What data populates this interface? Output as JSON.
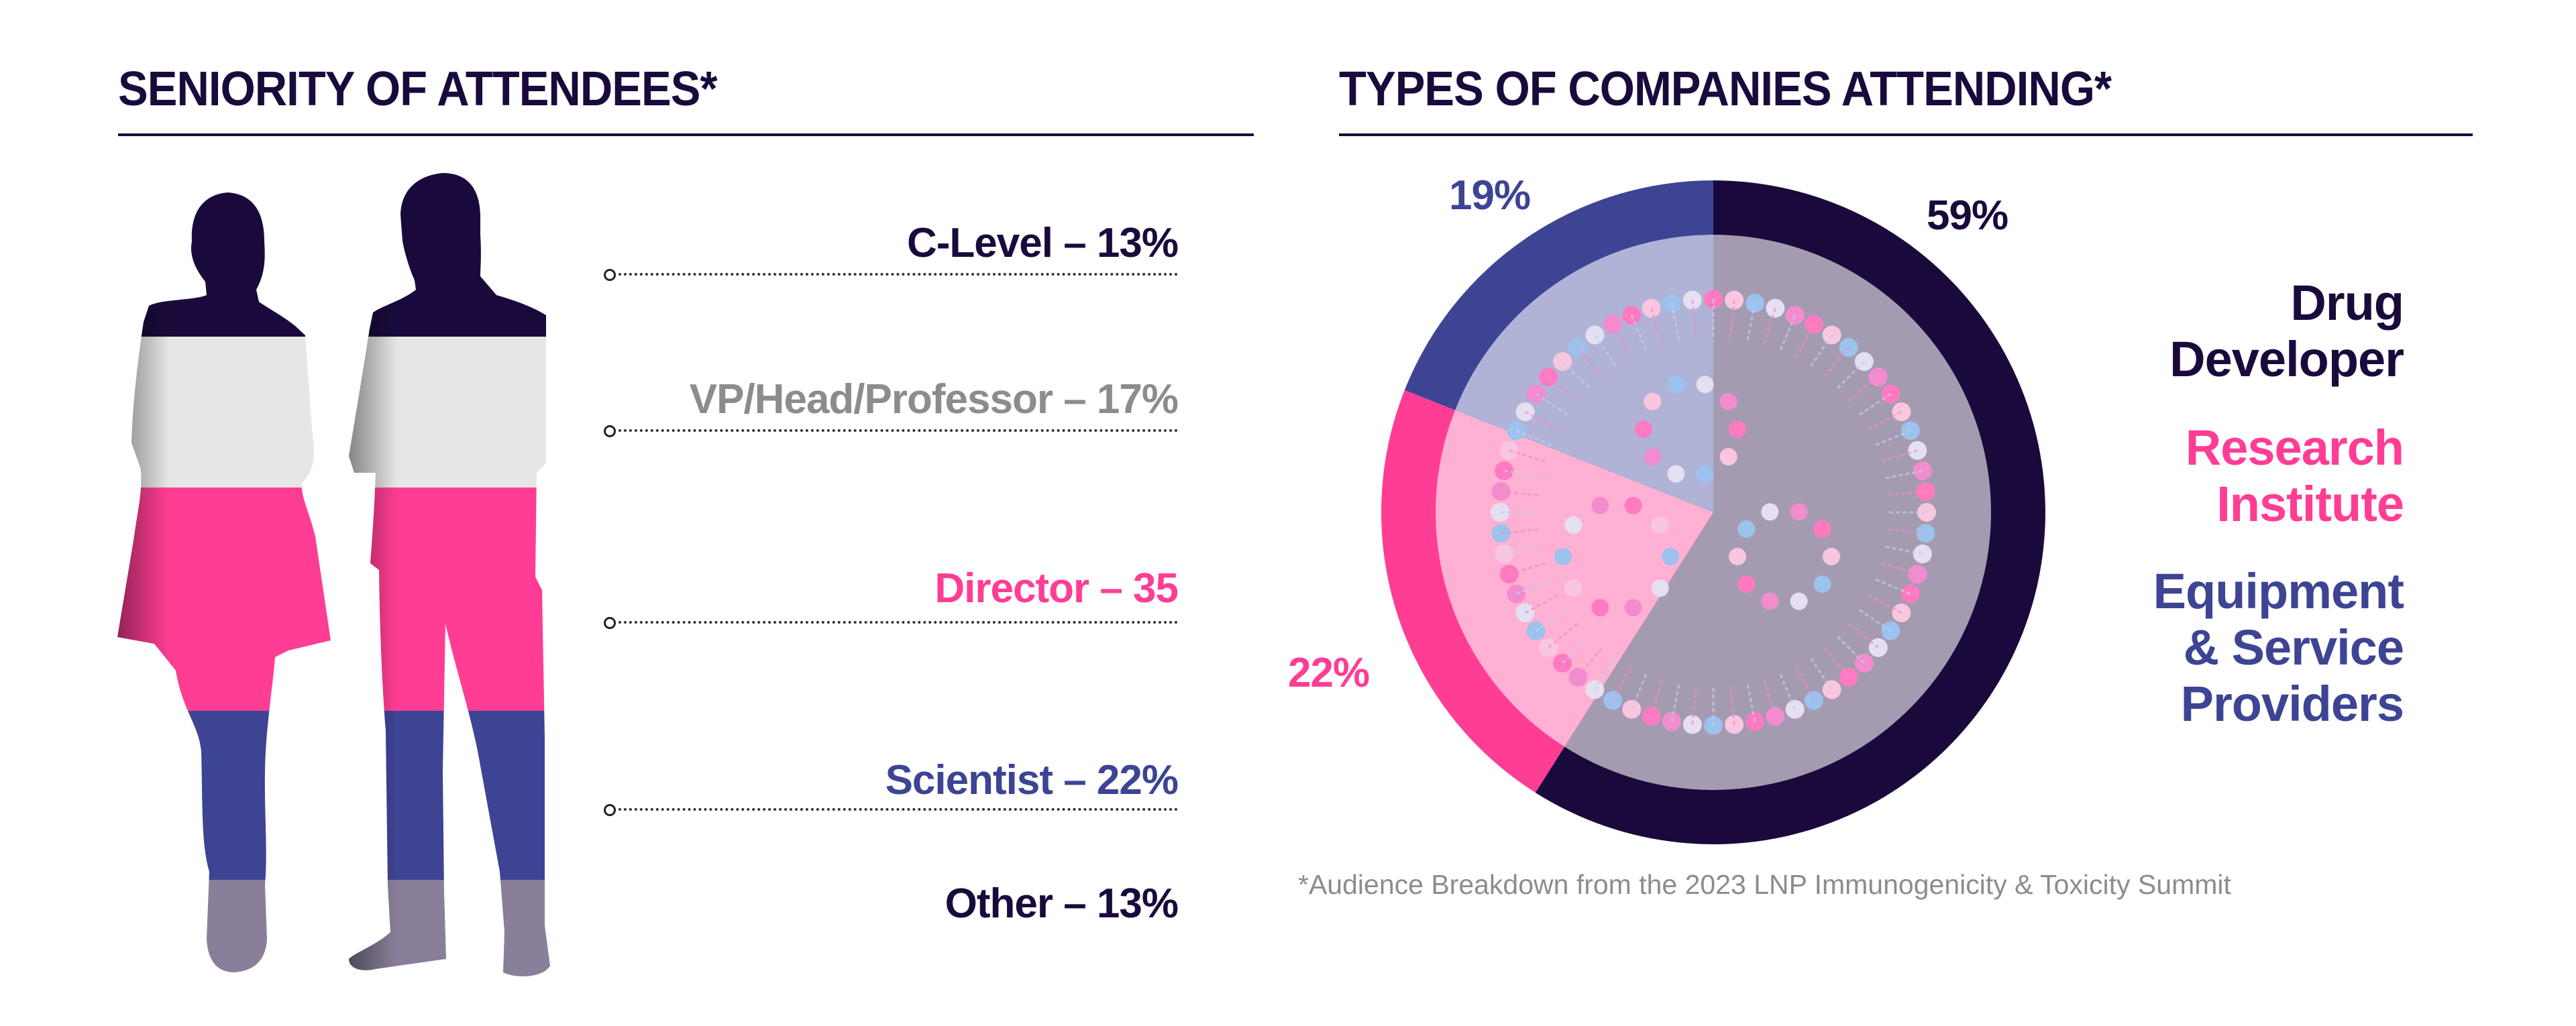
{
  "left": {
    "title": "SENIORITY OF ATTENDEES*",
    "items": [
      {
        "label": "C-Level – 13%",
        "color": "#1a0a3c"
      },
      {
        "label": "VP/Head/Professor – 17%",
        "color": "#8c8c8c"
      },
      {
        "label": "Director – 35",
        "color": "#ff3d94"
      },
      {
        "label": "Scientist – 22%",
        "color": "#3d4494"
      },
      {
        "label": "Other – 13%",
        "color": "#1a0a3c"
      }
    ]
  },
  "right": {
    "title": "TYPES OF COMPANIES ATTENDING*",
    "legend": [
      {
        "lines": [
          "Drug",
          "Developer"
        ],
        "color": "#1a0a3c"
      },
      {
        "lines": [
          "Research",
          "Institute"
        ],
        "color": "#ff3d94"
      },
      {
        "lines": [
          "Equipment",
          "& Service",
          "Providers"
        ],
        "color": "#3d4494"
      }
    ],
    "footnote": "*Audience Breakdown from the 2023 LNP Immunogenicity & Toxicity Summit"
  },
  "chart_data": [
    {
      "type": "bar",
      "title": "SENIORITY OF ATTENDEES*",
      "categories": [
        "C-Level",
        "VP/Head/Professor",
        "Director",
        "Scientist",
        "Other"
      ],
      "values": [
        13,
        17,
        35,
        22,
        13
      ],
      "unit": "%"
    },
    {
      "type": "pie",
      "title": "TYPES OF COMPANIES ATTENDING*",
      "categories": [
        "Drug Developer",
        "Research Institute",
        "Equipment & Service Providers"
      ],
      "values": [
        59,
        22,
        19
      ],
      "labels": [
        "59%",
        "22%",
        "19%"
      ],
      "colors": [
        "#1a0a3c",
        "#ff3d94",
        "#3d4494"
      ],
      "inner_colors": [
        "#a59bb0",
        "#ffb0d3",
        "#b0b3d6"
      ]
    }
  ]
}
